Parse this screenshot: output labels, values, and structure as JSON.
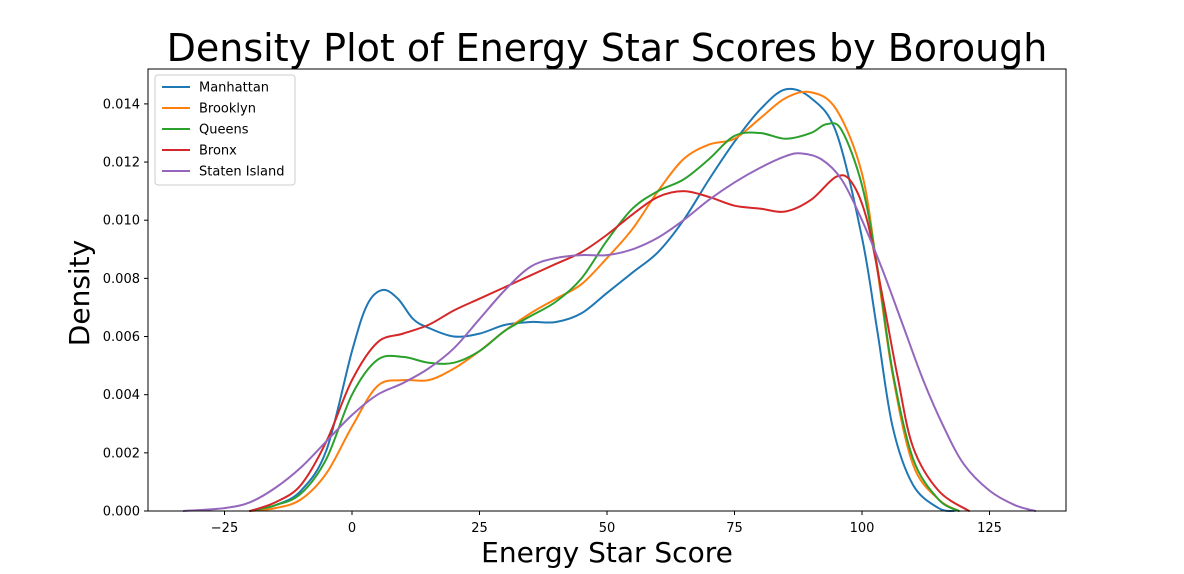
{
  "chart_data": {
    "type": "line",
    "title": "Density Plot of Energy Star Scores by Borough",
    "xlabel": "Energy Star Score",
    "ylabel": "Density",
    "xlim": [
      -40,
      140
    ],
    "ylim": [
      0,
      0.0152
    ],
    "xticks": [
      -25,
      0,
      25,
      50,
      75,
      100,
      125
    ],
    "xtick_labels": [
      "−25",
      "0",
      "25",
      "50",
      "75",
      "100",
      "125"
    ],
    "yticks": [
      0,
      0.002,
      0.004,
      0.006,
      0.008,
      0.01,
      0.012,
      0.014
    ],
    "ytick_labels": [
      "0.000",
      "0.002",
      "0.004",
      "0.006",
      "0.008",
      "0.010",
      "0.012",
      "0.014"
    ],
    "grid": false,
    "legend_position": "top-left",
    "series": [
      {
        "name": "Manhattan",
        "color": "#1f77b4",
        "points": [
          [
            -20,
            0
          ],
          [
            -15,
            0.0002
          ],
          [
            -10,
            0.0007
          ],
          [
            -5,
            0.0021
          ],
          [
            0,
            0.0055
          ],
          [
            3,
            0.0071
          ],
          [
            6,
            0.0076
          ],
          [
            9,
            0.0073
          ],
          [
            12,
            0.0066
          ],
          [
            15,
            0.0063
          ],
          [
            20,
            0.006
          ],
          [
            25,
            0.0061
          ],
          [
            30,
            0.0064
          ],
          [
            35,
            0.0065
          ],
          [
            40,
            0.0065
          ],
          [
            45,
            0.0068
          ],
          [
            50,
            0.0075
          ],
          [
            55,
            0.0082
          ],
          [
            60,
            0.0089
          ],
          [
            65,
            0.01
          ],
          [
            70,
            0.0114
          ],
          [
            75,
            0.0127
          ],
          [
            80,
            0.0138
          ],
          [
            85,
            0.0145
          ],
          [
            90,
            0.0142
          ],
          [
            95,
            0.013
          ],
          [
            100,
            0.0094
          ],
          [
            103,
            0.0062
          ],
          [
            106,
            0.0029
          ],
          [
            110,
            0.0009
          ],
          [
            115,
            0.0001
          ],
          [
            118,
            0
          ]
        ]
      },
      {
        "name": "Brooklyn",
        "color": "#ff7f0e",
        "points": [
          [
            -20,
            0
          ],
          [
            -15,
            0.0001
          ],
          [
            -10,
            0.0004
          ],
          [
            -5,
            0.0013
          ],
          [
            0,
            0.0029
          ],
          [
            5,
            0.0043
          ],
          [
            10,
            0.0045
          ],
          [
            15,
            0.0045
          ],
          [
            20,
            0.0049
          ],
          [
            25,
            0.0055
          ],
          [
            30,
            0.0062
          ],
          [
            35,
            0.0068
          ],
          [
            40,
            0.0073
          ],
          [
            45,
            0.0078
          ],
          [
            50,
            0.0087
          ],
          [
            55,
            0.0097
          ],
          [
            60,
            0.011
          ],
          [
            65,
            0.0121
          ],
          [
            70,
            0.0126
          ],
          [
            75,
            0.0128
          ],
          [
            80,
            0.0135
          ],
          [
            85,
            0.0142
          ],
          [
            90,
            0.0144
          ],
          [
            95,
            0.0138
          ],
          [
            100,
            0.0116
          ],
          [
            103,
            0.0083
          ],
          [
            106,
            0.0047
          ],
          [
            110,
            0.0016
          ],
          [
            115,
            0.0004
          ],
          [
            119,
            0
          ]
        ]
      },
      {
        "name": "Queens",
        "color": "#2ca02c",
        "points": [
          [
            -20,
            0
          ],
          [
            -15,
            0.0002
          ],
          [
            -10,
            0.0006
          ],
          [
            -5,
            0.0018
          ],
          [
            0,
            0.004
          ],
          [
            5,
            0.0052
          ],
          [
            10,
            0.0053
          ],
          [
            15,
            0.0051
          ],
          [
            20,
            0.0051
          ],
          [
            25,
            0.0055
          ],
          [
            30,
            0.0062
          ],
          [
            35,
            0.0067
          ],
          [
            40,
            0.0072
          ],
          [
            45,
            0.008
          ],
          [
            50,
            0.0093
          ],
          [
            55,
            0.0104
          ],
          [
            60,
            0.011
          ],
          [
            65,
            0.0114
          ],
          [
            70,
            0.0121
          ],
          [
            75,
            0.0129
          ],
          [
            80,
            0.013
          ],
          [
            85,
            0.0128
          ],
          [
            90,
            0.013
          ],
          [
            93,
            0.0133
          ],
          [
            96,
            0.0131
          ],
          [
            100,
            0.0112
          ],
          [
            103,
            0.0084
          ],
          [
            106,
            0.0048
          ],
          [
            110,
            0.0018
          ],
          [
            115,
            0.0004
          ],
          [
            119,
            0
          ]
        ]
      },
      {
        "name": "Bronx",
        "color": "#d62728",
        "points": [
          [
            -20,
            0
          ],
          [
            -15,
            0.0003
          ],
          [
            -10,
            0.0009
          ],
          [
            -5,
            0.0024
          ],
          [
            0,
            0.0045
          ],
          [
            5,
            0.0058
          ],
          [
            10,
            0.0061
          ],
          [
            15,
            0.0064
          ],
          [
            20,
            0.0069
          ],
          [
            25,
            0.0073
          ],
          [
            30,
            0.0077
          ],
          [
            35,
            0.0081
          ],
          [
            40,
            0.0085
          ],
          [
            45,
            0.0089
          ],
          [
            50,
            0.0095
          ],
          [
            55,
            0.0102
          ],
          [
            60,
            0.0108
          ],
          [
            65,
            0.011
          ],
          [
            70,
            0.0108
          ],
          [
            75,
            0.0105
          ],
          [
            80,
            0.0104
          ],
          [
            85,
            0.0103
          ],
          [
            90,
            0.0107
          ],
          [
            95,
            0.0115
          ],
          [
            98,
            0.0113
          ],
          [
            101,
            0.01
          ],
          [
            104,
            0.0074
          ],
          [
            107,
            0.0046
          ],
          [
            110,
            0.0022
          ],
          [
            115,
            0.0007
          ],
          [
            121,
            0
          ]
        ]
      },
      {
        "name": "Staten Island",
        "color": "#9467bd",
        "points": [
          [
            -33,
            0
          ],
          [
            -25,
            0.0001
          ],
          [
            -20,
            0.0003
          ],
          [
            -15,
            0.0008
          ],
          [
            -10,
            0.0015
          ],
          [
            -5,
            0.0024
          ],
          [
            0,
            0.0033
          ],
          [
            5,
            0.004
          ],
          [
            10,
            0.0044
          ],
          [
            15,
            0.0049
          ],
          [
            20,
            0.0056
          ],
          [
            25,
            0.0066
          ],
          [
            30,
            0.0076
          ],
          [
            35,
            0.0084
          ],
          [
            40,
            0.0087
          ],
          [
            45,
            0.0088
          ],
          [
            50,
            0.0088
          ],
          [
            55,
            0.009
          ],
          [
            60,
            0.0094
          ],
          [
            65,
            0.01
          ],
          [
            70,
            0.0107
          ],
          [
            75,
            0.0113
          ],
          [
            80,
            0.0118
          ],
          [
            85,
            0.0122
          ],
          [
            88,
            0.0123
          ],
          [
            92,
            0.0121
          ],
          [
            96,
            0.0114
          ],
          [
            100,
            0.01
          ],
          [
            104,
            0.0083
          ],
          [
            108,
            0.0064
          ],
          [
            112,
            0.0045
          ],
          [
            116,
            0.0029
          ],
          [
            120,
            0.0016
          ],
          [
            125,
            0.0007
          ],
          [
            130,
            0.0002
          ],
          [
            134,
            0
          ]
        ]
      }
    ]
  }
}
